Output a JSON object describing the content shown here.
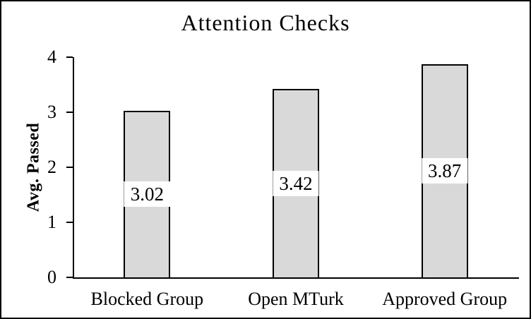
{
  "window": {
    "background_color": "#ffffff",
    "border_color": "#000000"
  },
  "chart_data": {
    "type": "bar",
    "title": "Attention Checks",
    "xlabel": "",
    "ylabel": "Avg. Passed",
    "categories": [
      "Blocked Group",
      "Open MTurk",
      "Approved Group"
    ],
    "values": [
      3.02,
      3.42,
      3.87
    ],
    "data_labels": [
      "3.02",
      "3.42",
      "3.87"
    ],
    "ylim": [
      0,
      4
    ],
    "yticks": [
      0,
      1,
      2,
      3,
      4
    ],
    "ytick_labels": [
      "0",
      "1",
      "2",
      "3",
      "4"
    ],
    "grid": false,
    "legend": false,
    "bar_fill_color": "#d9d9d9",
    "bar_border_color": "#000000",
    "text_color": "#000000",
    "label_box_color": "#ffffff"
  }
}
